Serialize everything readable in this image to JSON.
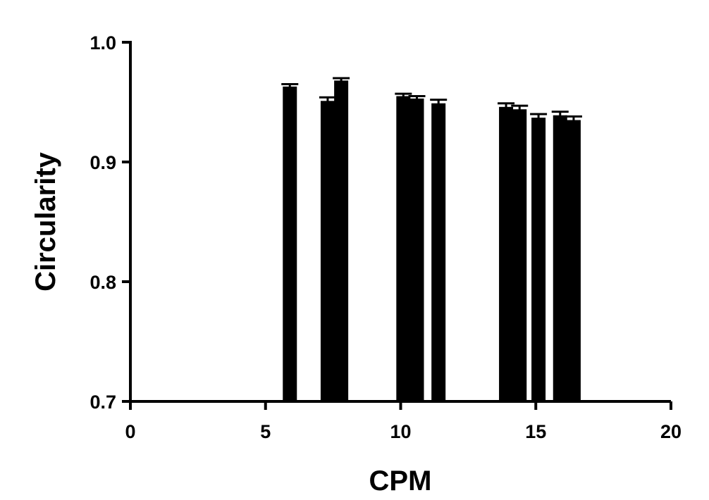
{
  "chart_data": {
    "type": "bar",
    "title": "",
    "xlabel": "CPM",
    "ylabel": "Circularity",
    "xlim": [
      0,
      20
    ],
    "ylim": [
      0.7,
      1.0
    ],
    "x_ticks": [
      0,
      5,
      10,
      15,
      20
    ],
    "x_tick_labels": [
      "0",
      "5",
      "10",
      "15",
      "20"
    ],
    "y_ticks": [
      0.7,
      0.8,
      0.9,
      1.0
    ],
    "y_tick_labels": [
      "0.7",
      "0.8",
      "0.9",
      "1.0"
    ],
    "grid": false,
    "bar_color": "#000000",
    "points": [
      {
        "x": 5.9,
        "y": 0.963,
        "err": 0.002
      },
      {
        "x": 7.3,
        "y": 0.951,
        "err": 0.003
      },
      {
        "x": 7.8,
        "y": 0.968,
        "err": 0.002
      },
      {
        "x": 10.1,
        "y": 0.955,
        "err": 0.002
      },
      {
        "x": 10.6,
        "y": 0.953,
        "err": 0.002
      },
      {
        "x": 11.4,
        "y": 0.949,
        "err": 0.003
      },
      {
        "x": 13.9,
        "y": 0.946,
        "err": 0.003
      },
      {
        "x": 14.4,
        "y": 0.944,
        "err": 0.003
      },
      {
        "x": 15.1,
        "y": 0.937,
        "err": 0.003
      },
      {
        "x": 15.9,
        "y": 0.939,
        "err": 0.003
      },
      {
        "x": 16.4,
        "y": 0.935,
        "err": 0.003
      }
    ]
  }
}
